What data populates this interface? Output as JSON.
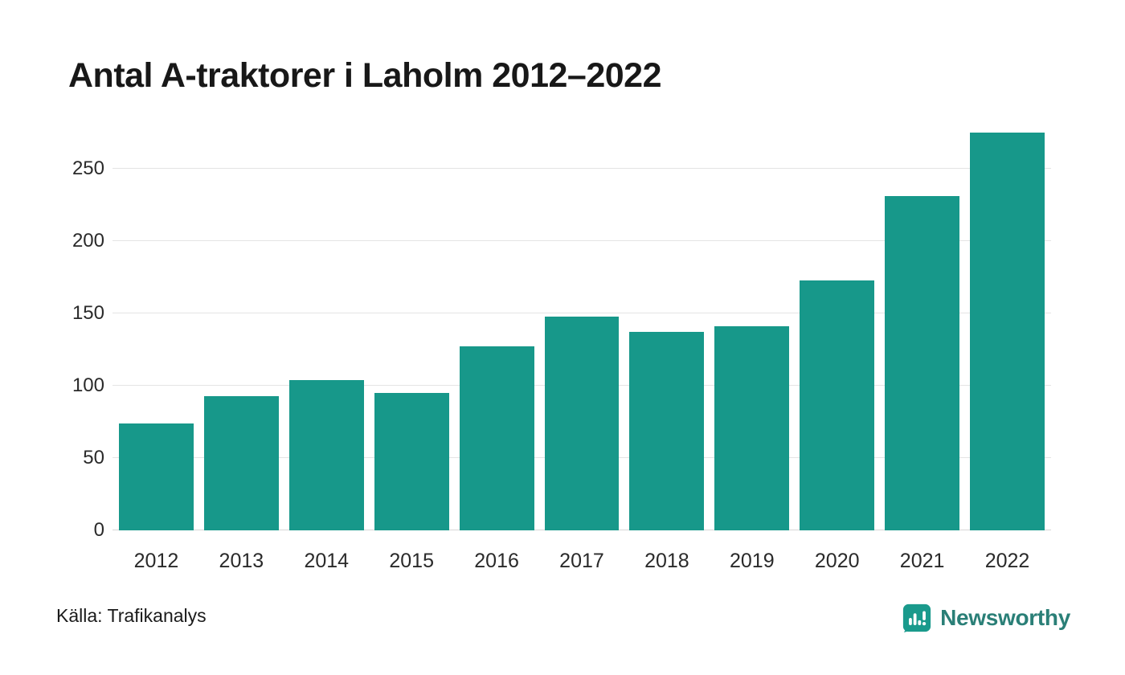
{
  "title": "Antal A-traktorer i Laholm 2012–2022",
  "source": "Källa: Trafikanalys",
  "brand": {
    "name": "Newsworthy",
    "icon": "newsworthy-bar-chart-logo-icon",
    "icon_color": "#1a9a8c",
    "text_color": "#2a7f77"
  },
  "chart_data": {
    "type": "bar",
    "title": "Antal A-traktorer i Laholm 2012–2022",
    "categories": [
      "2012",
      "2013",
      "2014",
      "2015",
      "2016",
      "2017",
      "2018",
      "2019",
      "2020",
      "2021",
      "2022"
    ],
    "values": [
      74,
      93,
      104,
      95,
      127,
      148,
      137,
      141,
      173,
      231,
      275
    ],
    "xlabel": "",
    "ylabel": "",
    "ylim": [
      0,
      275
    ],
    "yticks": [
      0,
      50,
      100,
      150,
      200,
      250
    ],
    "bar_color": "#17988a",
    "grid": true,
    "gridline_color": "#e4e4e4",
    "legend": false,
    "source": "Källa: Trafikanalys"
  }
}
